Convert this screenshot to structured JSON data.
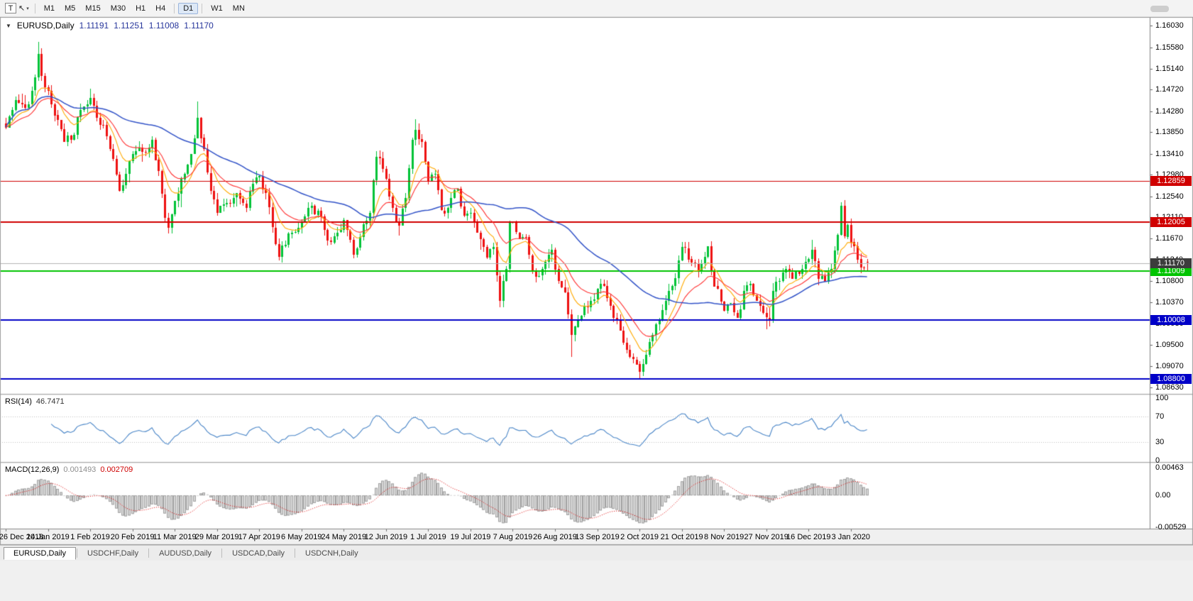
{
  "toolbar": {
    "text_tool_label": "T",
    "cursor_glyph": "↖",
    "caret_glyph": "▾",
    "timeframes": [
      "M1",
      "M5",
      "M15",
      "M30",
      "H1",
      "H4",
      "D1",
      "W1",
      "MN"
    ],
    "active_timeframe": "D1"
  },
  "chart": {
    "header": {
      "collapse_glyph": "▼",
      "symbol": "EURUSD,Daily",
      "ohlc": [
        "1.11191",
        "1.11251",
        "1.11008",
        "1.11170"
      ]
    },
    "horizontal_lines": [
      {
        "label": "1.12859",
        "value": 1.12859,
        "color": "#d00000",
        "width": 1
      },
      {
        "label": "1.12005",
        "value": 1.12005,
        "color": "#d00000",
        "width": 2
      },
      {
        "label": "1.11009",
        "value": 1.11009,
        "color": "#00c400",
        "width": 2
      },
      {
        "label": "1.10008",
        "value": 1.10008,
        "color": "#0000c8",
        "width": 2
      },
      {
        "label": "1.08800",
        "value": 1.088,
        "color": "#0000c8",
        "width": 2
      }
    ],
    "current_price": {
      "label": "1.11170",
      "value": 1.1117,
      "line_color": "#b4b4b4",
      "flag_color": "#3c3c3c"
    }
  },
  "indicators": {
    "rsi": {
      "name": "RSI(14)",
      "value": "46.7471",
      "period": 14,
      "levels": [
        70,
        30
      ],
      "axis": [
        "100",
        "70",
        "30",
        "0"
      ],
      "line_color": "#4a86c8"
    },
    "macd": {
      "name": "MACD(12,26,9)",
      "values": [
        "0.001493",
        "0.002709"
      ],
      "fast": 12,
      "slow": 26,
      "signal": 9,
      "axis": [
        "0.00463",
        "0.00",
        "-0.00529"
      ],
      "hist_fill": "#d6d6d6",
      "hist_stroke": "#a2a2a2",
      "signal_color": "#e00000"
    }
  },
  "tabs": [
    {
      "label": "EURUSD,Daily",
      "active": true
    },
    {
      "label": "USDCHF,Daily",
      "active": false
    },
    {
      "label": "AUDUSD,Daily",
      "active": false
    },
    {
      "label": "USDCAD,Daily",
      "active": false
    },
    {
      "label": "USDCNH,Daily",
      "active": false
    }
  ],
  "colors": {
    "bull": "#00c236",
    "bear": "#ee1111",
    "background": "#ffffff",
    "window": "#f0f0f0"
  },
  "chart_data": {
    "type": "candlestick",
    "symbol": "EURUSD",
    "timeframe": "Daily",
    "n_candles": 266,
    "visible_price_range": [
      1.085,
      1.162
    ],
    "price_axis_ticks": [
      "1.16030",
      "1.15580",
      "1.15140",
      "1.14720",
      "1.14280",
      "1.13850",
      "1.13410",
      "1.12980",
      "1.12540",
      "1.12110",
      "1.11670",
      "1.11240",
      "1.10800",
      "1.10370",
      "1.09930",
      "1.09500",
      "1.09070",
      "1.08630"
    ],
    "time_axis_labels": [
      "26 Dec 2018",
      "14 Jan 2019",
      "1 Feb 2019",
      "20 Feb 2019",
      "11 Mar 2019",
      "29 Mar 2019",
      "17 Apr 2019",
      "6 May 2019",
      "24 May 2019",
      "12 Jun 2019",
      "1 Jul 2019",
      "19 Jul 2019",
      "7 Aug 2019",
      "26 Aug 2019",
      "13 Sep 2019",
      "2 Oct 2019",
      "21 Oct 2019",
      "8 Nov 2019",
      "27 Nov 2019",
      "16 Dec 2019",
      "3 Jan 2020"
    ],
    "candles_per_label": 13,
    "support_resistance_levels": [
      1.12859,
      1.12005,
      1.11009,
      1.10008,
      1.088
    ],
    "last_candle": {
      "open": 1.11191,
      "high": 1.11251,
      "low": 1.11008,
      "close": 1.1117
    },
    "moving_averages": [
      {
        "type": "ema",
        "period": 9,
        "color": "#ffaa00"
      },
      {
        "type": "ema",
        "period": 18,
        "color": "#ff3232"
      },
      {
        "type": "sma",
        "period": 50,
        "color": "#3253c8"
      }
    ],
    "price_anchors": [
      [
        0,
        1.1395
      ],
      [
        3,
        1.145
      ],
      [
        6,
        1.1435
      ],
      [
        8,
        1.147
      ],
      [
        10,
        1.1545
      ],
      [
        11,
        1.15
      ],
      [
        13,
        1.147
      ],
      [
        16,
        1.141
      ],
      [
        18,
        1.1365
      ],
      [
        21,
        1.138
      ],
      [
        23,
        1.143
      ],
      [
        26,
        1.1455
      ],
      [
        28,
        1.1415
      ],
      [
        30,
        1.14
      ],
      [
        33,
        1.133
      ],
      [
        35,
        1.1265
      ],
      [
        37,
        1.13
      ],
      [
        39,
        1.134
      ],
      [
        42,
        1.1345
      ],
      [
        45,
        1.137
      ],
      [
        47,
        1.1305
      ],
      [
        49,
        1.121
      ],
      [
        50,
        1.119
      ],
      [
        52,
        1.1245
      ],
      [
        55,
        1.13
      ],
      [
        57,
        1.134
      ],
      [
        59,
        1.1415
      ],
      [
        61,
        1.135
      ],
      [
        63,
        1.1265
      ],
      [
        65,
        1.122
      ],
      [
        68,
        1.124
      ],
      [
        71,
        1.126
      ],
      [
        74,
        1.123
      ],
      [
        76,
        1.128
      ],
      [
        78,
        1.1295
      ],
      [
        80,
        1.126
      ],
      [
        82,
        1.119
      ],
      [
        84,
        1.113
      ],
      [
        86,
        1.1155
      ],
      [
        88,
        1.118
      ],
      [
        91,
        1.12
      ],
      [
        93,
        1.123
      ],
      [
        96,
        1.1225
      ],
      [
        98,
        1.1185
      ],
      [
        100,
        1.116
      ],
      [
        102,
        1.118
      ],
      [
        104,
        1.1205
      ],
      [
        106,
        1.1165
      ],
      [
        107,
        1.1135
      ],
      [
        109,
        1.117
      ],
      [
        112,
        1.122
      ],
      [
        114,
        1.1335
      ],
      [
        116,
        1.131
      ],
      [
        117,
        1.129
      ],
      [
        119,
        1.123
      ],
      [
        121,
        1.1195
      ],
      [
        123,
        1.125
      ],
      [
        125,
        1.137
      ],
      [
        126,
        1.139
      ],
      [
        128,
        1.1365
      ],
      [
        130,
        1.1285
      ],
      [
        132,
        1.13
      ],
      [
        134,
        1.1225
      ],
      [
        136,
        1.123
      ],
      [
        137,
        1.125
      ],
      [
        139,
        1.127
      ],
      [
        141,
        1.1215
      ],
      [
        143,
        1.122
      ],
      [
        145,
        1.118
      ],
      [
        148,
        1.1128
      ],
      [
        150,
        1.115
      ],
      [
        152,
        1.104
      ],
      [
        154,
        1.1105
      ],
      [
        155,
        1.12
      ],
      [
        157,
        1.118
      ],
      [
        160,
        1.117
      ],
      [
        162,
        1.11
      ],
      [
        163,
        1.109
      ],
      [
        165,
        1.1105
      ],
      [
        168,
        1.1145
      ],
      [
        170,
        1.108
      ],
      [
        172,
        1.1057
      ],
      [
        174,
        1.097
      ],
      [
        176,
        1.1
      ],
      [
        178,
        1.1028
      ],
      [
        180,
        1.104
      ],
      [
        182,
        1.1065
      ],
      [
        184,
        1.107
      ],
      [
        186,
        1.103
      ],
      [
        188,
        1.1
      ],
      [
        191,
        1.094
      ],
      [
        193,
        1.092
      ],
      [
        195,
        1.0895
      ],
      [
        197,
        1.093
      ],
      [
        199,
        1.097
      ],
      [
        201,
        1.1
      ],
      [
        203,
        1.104
      ],
      [
        205,
        1.107
      ],
      [
        208,
        1.115
      ],
      [
        210,
        1.1125
      ],
      [
        213,
        1.11
      ],
      [
        215,
        1.113
      ],
      [
        216,
        1.1152
      ],
      [
        218,
        1.107
      ],
      [
        221,
        1.102
      ],
      [
        223,
        1.1035
      ],
      [
        225,
        1.1005
      ],
      [
        227,
        1.106
      ],
      [
        229,
        1.1075
      ],
      [
        231,
        1.104
      ],
      [
        233,
        1.1015
      ],
      [
        235,
        1.1
      ],
      [
        236,
        1.106
      ],
      [
        238,
        1.108
      ],
      [
        240,
        1.1105
      ],
      [
        242,
        1.1085
      ],
      [
        244,
        1.1095
      ],
      [
        246,
        1.112
      ],
      [
        248,
        1.1145
      ],
      [
        250,
        1.1085
      ],
      [
        252,
        1.108
      ],
      [
        254,
        1.1105
      ],
      [
        256,
        1.1175
      ],
      [
        257,
        1.1235
      ],
      [
        258,
        1.1172
      ],
      [
        259,
        1.1196
      ],
      [
        260,
        1.116
      ],
      [
        261,
        1.1152
      ],
      [
        262,
        1.1125
      ],
      [
        263,
        1.1108
      ],
      [
        264,
        1.1107
      ],
      [
        265,
        1.1117
      ]
    ],
    "special_highs": {
      "10": 1.157,
      "59": 1.1448,
      "126": 1.1412,
      "257": 1.1239
    },
    "special_lows": {
      "152": 1.1027,
      "174": 1.0926,
      "195": 1.0879
    }
  }
}
